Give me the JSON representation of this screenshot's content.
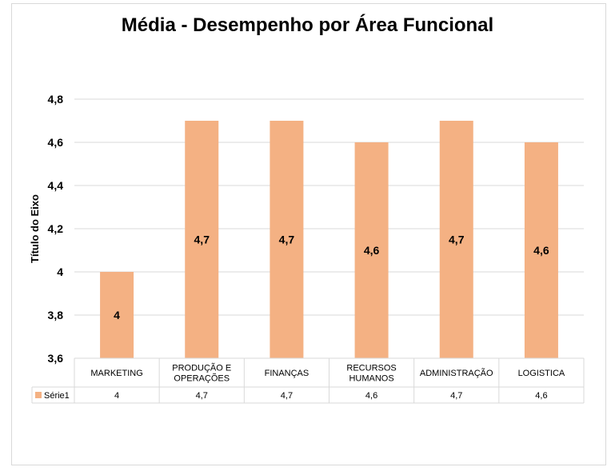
{
  "chart_data": {
    "type": "bar",
    "title": "Média - Desempenho por Área Funcional",
    "ylabel": "Título do Eixo",
    "xlabel": "",
    "categories": [
      "MARKETING",
      "PRODUÇÃO E OPERAÇÕES",
      "FINANÇAS",
      "RECURSOS HUMANOS",
      "ADMINISTRAÇÃO",
      "LOGISTICA"
    ],
    "category_lines": [
      [
        "MARKETING"
      ],
      [
        "PRODUÇÃO E",
        "OPERAÇÕES"
      ],
      [
        "FINANÇAS"
      ],
      [
        "RECURSOS",
        "HUMANOS"
      ],
      [
        "ADMINISTRAÇÃO"
      ],
      [
        "LOGISTICA"
      ]
    ],
    "series": [
      {
        "name": "Série1",
        "values": [
          4,
          4.7,
          4.7,
          4.6,
          4.7,
          4.6
        ],
        "labels": [
          "4",
          "4,7",
          "4,7",
          "4,6",
          "4,7",
          "4,6"
        ]
      }
    ],
    "ylim": [
      3.6,
      4.8
    ],
    "yticks": [
      3.6,
      3.8,
      4,
      4.2,
      4.4,
      4.6,
      4.8
    ],
    "ytick_labels": [
      "3,6",
      "3,8",
      "4",
      "4,2",
      "4,4",
      "4,6",
      "4,8"
    ],
    "grid": true,
    "legend": "data-table",
    "colors": {
      "bar": "#f4b183",
      "grid": "#d9d9d9"
    }
  }
}
